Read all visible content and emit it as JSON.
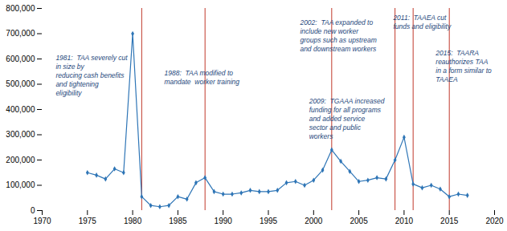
{
  "chart_data": {
    "type": "line",
    "x": [
      1975,
      1976,
      1977,
      1978,
      1979,
      1980,
      1981,
      1982,
      1983,
      1984,
      1985,
      1986,
      1987,
      1988,
      1989,
      1990,
      1991,
      1992,
      1993,
      1994,
      1995,
      1996,
      1997,
      1998,
      1999,
      2000,
      2001,
      2002,
      2003,
      2004,
      2005,
      2006,
      2007,
      2008,
      2009,
      2010,
      2011,
      2012,
      2013,
      2014,
      2015,
      2016,
      2017
    ],
    "values": [
      150000,
      140000,
      125000,
      165000,
      150000,
      700000,
      55000,
      20000,
      15000,
      20000,
      55000,
      45000,
      110000,
      130000,
      75000,
      65000,
      65000,
      70000,
      80000,
      75000,
      75000,
      80000,
      110000,
      115000,
      100000,
      120000,
      160000,
      240000,
      195000,
      155000,
      115000,
      120000,
      130000,
      125000,
      200000,
      290000,
      105000,
      90000,
      100000,
      85000,
      55000,
      65000,
      60000
    ],
    "color": "#2e75b6",
    "marker": "diamond",
    "vlines": {
      "x": [
        1981,
        1988,
        2002,
        2009,
        2011,
        2015
      ],
      "color": "#c0392b"
    },
    "annotations": [
      {
        "text": "1981:  TAA severely cut\nin size by\nreducing cash benefits\nand tightening\neligibility",
        "x": 1971.5,
        "y": 620000,
        "color": "#1f497d"
      },
      {
        "text": "1988:  TAA modified to\nmandate  worker training",
        "x": 1983.5,
        "y": 560000,
        "color": "#1f497d"
      },
      {
        "text": "2002:  TAA expanded to\ninclude new worker\ngroups such as upstream\nand downstream workers",
        "x": 1998.5,
        "y": 760000,
        "color": "#1f497d"
      },
      {
        "text": "2009:  TGAAA increased\nfunding for all programs\nand added service\nsector and public\nworkers",
        "x": 1999.5,
        "y": 450000,
        "color": "#1f497d"
      },
      {
        "text": "2011:  TAAEA cut\nfunds and eligibility",
        "x": 2008.8,
        "y": 780000,
        "color": "#1f497d"
      },
      {
        "text": "2015:  TAARA\nreauthorizes TAA\nin a form similar to\nTAAEA",
        "x": 2013.5,
        "y": 640000,
        "color": "#1f497d"
      }
    ],
    "xlim": [
      1970,
      2020
    ],
    "ylim": [
      0,
      800000
    ],
    "xticks": [
      1970,
      1975,
      1980,
      1985,
      1990,
      1995,
      2000,
      2005,
      2010,
      2015,
      2020
    ],
    "yticks": [
      0,
      {
        "value": 100000,
        "label": "100,000"
      },
      {
        "value": 200000,
        "label": "200,000"
      },
      {
        "value": 300000,
        "label": "300,000"
      },
      {
        "value": 400000,
        "label": "400,000"
      },
      {
        "value": 500000,
        "label": "500,000"
      },
      {
        "value": 600000,
        "label": "600,000"
      },
      {
        "value": 700000,
        "label": "700,000"
      },
      {
        "value": 800000,
        "label": "800,000"
      }
    ],
    "grid": false
  }
}
